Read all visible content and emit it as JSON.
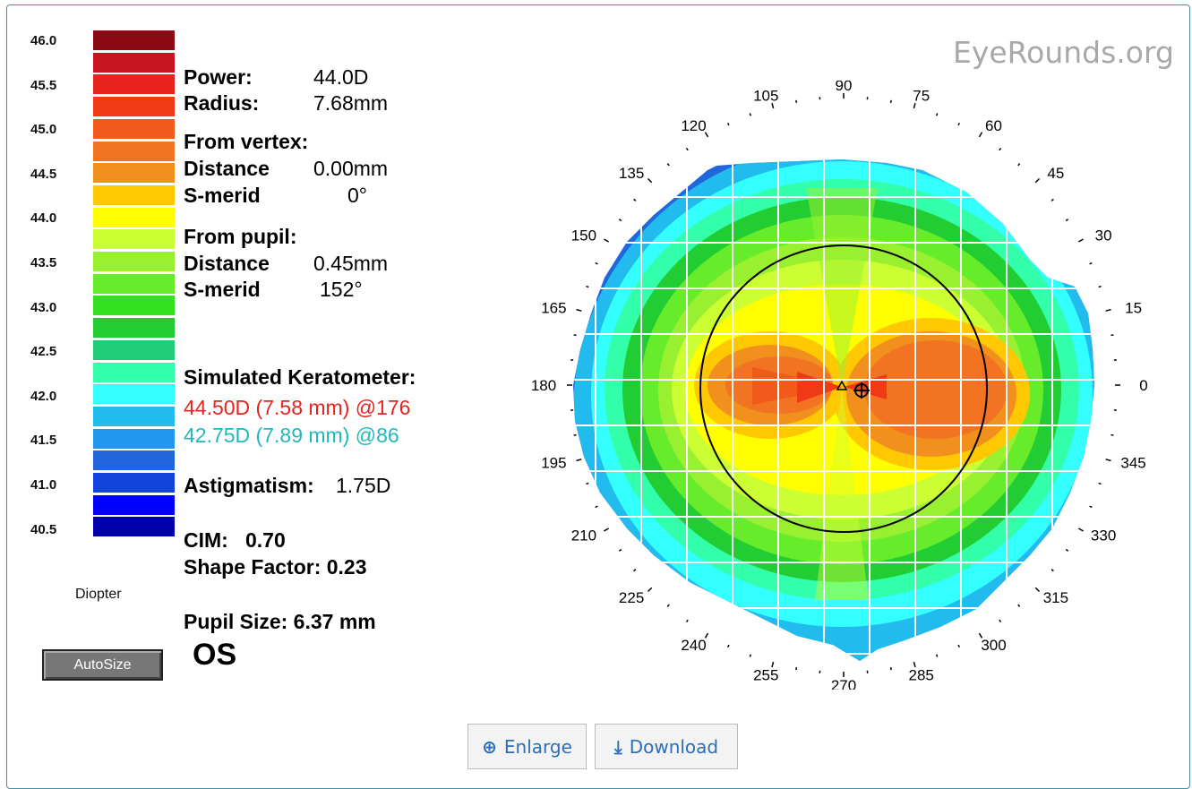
{
  "watermark": "EyeRounds.org",
  "scale": {
    "labels": [
      "46.0",
      "45.5",
      "45.0",
      "44.5",
      "44.0",
      "43.5",
      "43.0",
      "42.5",
      "42.0",
      "41.5",
      "41.0",
      "40.5"
    ],
    "colors": [
      "#8b0a14",
      "#c8141e",
      "#e8231e",
      "#f03a17",
      "#f25a1c",
      "#f27422",
      "#f2901e",
      "#ffc800",
      "#ffff00",
      "#ccff33",
      "#99f031",
      "#66ec2a",
      "#33e21e",
      "#22cc33",
      "#22cc77",
      "#33ffaa",
      "#33ffff",
      "#22bbee",
      "#2299ee",
      "#2266dd",
      "#1144dd",
      "#0000ff",
      "#0000aa"
    ],
    "unit": "Diopter"
  },
  "autosize_label": "AutoSize",
  "info": {
    "power_label": "Power:",
    "power_value": "44.0D",
    "radius_label": "Radius:",
    "radius_value": "7.68mm",
    "from_vertex": "From vertex:",
    "vertex_distance_label": "Distance",
    "vertex_distance_value": "0.00mm",
    "vertex_smerid_label": "S-merid",
    "vertex_smerid_value": "0°",
    "from_pupil": "From pupil:",
    "pupil_distance_label": "Distance",
    "pupil_distance_value": "0.45mm",
    "pupil_smerid_label": "S-merid",
    "pupil_smerid_value": "152°",
    "simk_title": "Simulated Keratometer:",
    "simk_steep": "44.50D (7.58 mm) @176",
    "simk_flat": "42.75D (7.89 mm) @86",
    "astig_label": "Astigmatism:",
    "astig_value": "1.75D",
    "cim": "CIM:   0.70",
    "shape_factor": "Shape Factor: 0.23",
    "pupil_size": "Pupil Size: 6.37 mm",
    "eye": "OS"
  },
  "colors": {
    "steep": "#e8231e",
    "flat": "#20b8c0"
  },
  "angles": [
    "0",
    "15",
    "30",
    "45",
    "60",
    "75",
    "90",
    "105",
    "120",
    "135",
    "150",
    "165",
    "180",
    "195",
    "210",
    "225",
    "240",
    "255",
    "270",
    "285",
    "300",
    "315",
    "330",
    "345"
  ],
  "buttons": {
    "enlarge": "Enlarge",
    "download": "Download"
  }
}
